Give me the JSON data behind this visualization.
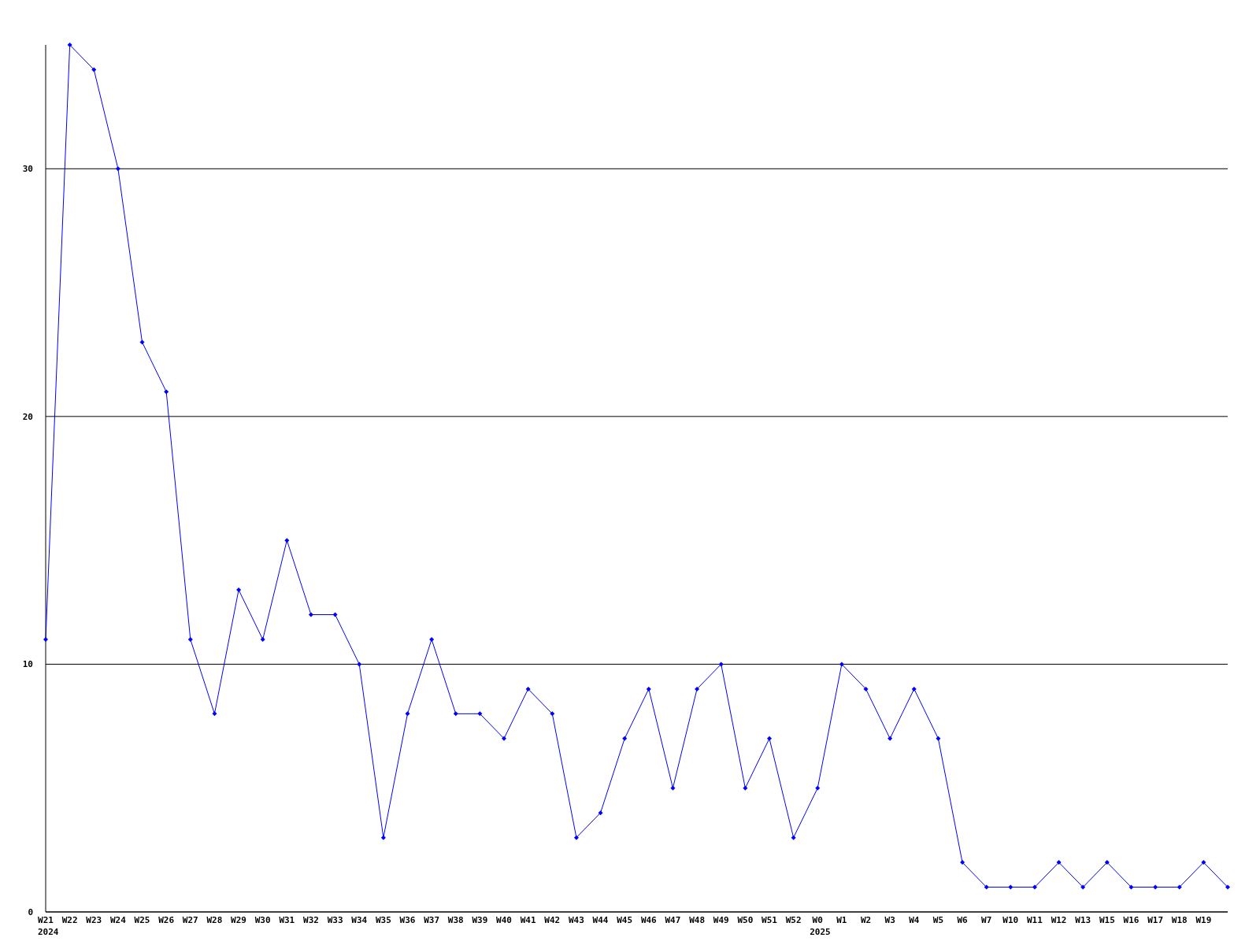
{
  "chart_data": {
    "type": "line",
    "categories": [
      "W21\n2024",
      "W22",
      "W23",
      "W24",
      "W25",
      "W26",
      "W27",
      "W28",
      "W29",
      "W30",
      "W31",
      "W32",
      "W33",
      "W34",
      "W35",
      "W36",
      "W37",
      "W38",
      "W39",
      "W40",
      "W41",
      "W42",
      "W43",
      "W44",
      "W45",
      "W46",
      "W47",
      "W48",
      "W49",
      "W50",
      "W51",
      "W52",
      "W0\n2025",
      "W1",
      "W2",
      "W3",
      "W4",
      "W5",
      "W6",
      "W7",
      "W10",
      "W11",
      "W12",
      "W13",
      "W15",
      "W16",
      "W17",
      "W18",
      "W19",
      null
    ],
    "series": [
      {
        "color": "#0000ff",
        "values": [
          11,
          35,
          34,
          30,
          23,
          21,
          11,
          8,
          13,
          11,
          15,
          12,
          12,
          10,
          3,
          8,
          11,
          8,
          8,
          7,
          9,
          8,
          3,
          4,
          7,
          9,
          5,
          9,
          10,
          5,
          7,
          3,
          5,
          10,
          9,
          7,
          9,
          7,
          2,
          1,
          1,
          1,
          2,
          1,
          2,
          1,
          1,
          1,
          2,
          1
        ]
      }
    ],
    "ylim": [
      0,
      35
    ],
    "yticks": [
      0,
      10,
      20,
      30
    ],
    "grid": "y",
    "marker": "diamond",
    "line_style": "solid"
  }
}
